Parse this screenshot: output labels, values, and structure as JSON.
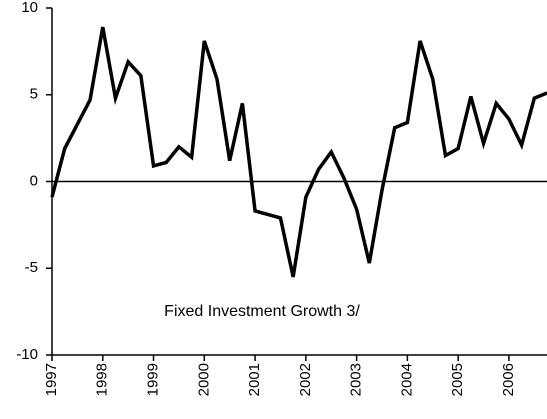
{
  "chart_data": {
    "type": "line",
    "annotation": "Fixed Investment Growth 3/",
    "x": [
      1997,
      1997.25,
      1997.5,
      1997.75,
      1998,
      1998.25,
      1998.5,
      1998.75,
      1999,
      1999.25,
      1999.5,
      1999.75,
      2000,
      2000.25,
      2000.5,
      2000.75,
      2001,
      2001.25,
      2001.5,
      2001.75,
      2002,
      2002.25,
      2002.5,
      2002.75,
      2003,
      2003.25,
      2003.5,
      2003.75,
      2004,
      2004.25,
      2004.5,
      2004.75,
      2005,
      2005.25,
      2005.5,
      2005.75,
      2006,
      2006.25,
      2006.5,
      2006.75
    ],
    "series": [
      {
        "color": "#000000",
        "values": [
          -0.9,
          1.9,
          3.3,
          4.7,
          8.9,
          4.8,
          6.9,
          6.1,
          0.9,
          1.1,
          2.0,
          1.4,
          8.1,
          5.9,
          1.2,
          4.5,
          -1.7,
          -1.9,
          -2.1,
          -5.5,
          -0.9,
          0.7,
          1.7,
          0.2,
          -1.6,
          -4.7,
          -0.5,
          3.1,
          3.4,
          8.1,
          5.9,
          1.5,
          1.9,
          4.9,
          2.2,
          4.5,
          3.6,
          2.1,
          4.8,
          5.1
        ]
      }
    ],
    "xlim": [
      1997,
      2006.75
    ],
    "xticks": [
      1997,
      1998,
      1999,
      2000,
      2001,
      2002,
      2003,
      2004,
      2005,
      2006
    ],
    "ylim": [
      -10,
      10
    ],
    "yticks": [
      -10,
      -5,
      0,
      5,
      10
    ]
  }
}
